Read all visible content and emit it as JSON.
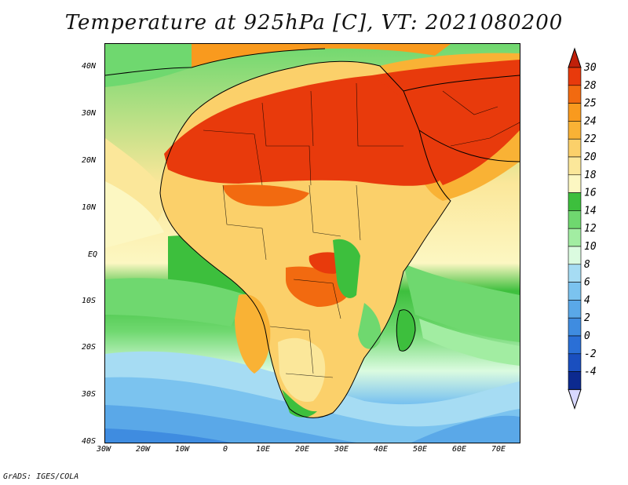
{
  "title": "Temperature at 925hPa [C], VT: 2021080200",
  "footer": "GrADS: IGES/COLA",
  "lat_labels": [
    "40N",
    "30N",
    "20N",
    "10N",
    "EQ",
    "10S",
    "20S",
    "30S",
    "40S"
  ],
  "lon_labels": [
    "30W",
    "20W",
    "10W",
    "0",
    "10E",
    "20E",
    "30E",
    "40E",
    "50E",
    "60E",
    "70E"
  ],
  "colorbar": {
    "labels": [
      "30",
      "28",
      "25",
      "24",
      "22",
      "20",
      "18",
      "16",
      "14",
      "12",
      "10",
      "8",
      "6",
      "4",
      "2",
      "0",
      "-2",
      "-4"
    ],
    "colors": [
      "#e83a0c",
      "#f26a10",
      "#f99a1e",
      "#f9b235",
      "#fbd06a",
      "#fbe79a",
      "#fcf7c2",
      "#3dbf3d",
      "#6fd86f",
      "#a2eda2",
      "#dbfbe0",
      "#a6dcf3",
      "#7bc3ef",
      "#5aa8e8",
      "#3f8ce0",
      "#2a6fd6",
      "#1a4fbf",
      "#0c2a8f",
      "#0a1a6a"
    ],
    "top_arrow_color": "#c0200a",
    "bottom_arrow_color": "#d8d8ff"
  }
}
